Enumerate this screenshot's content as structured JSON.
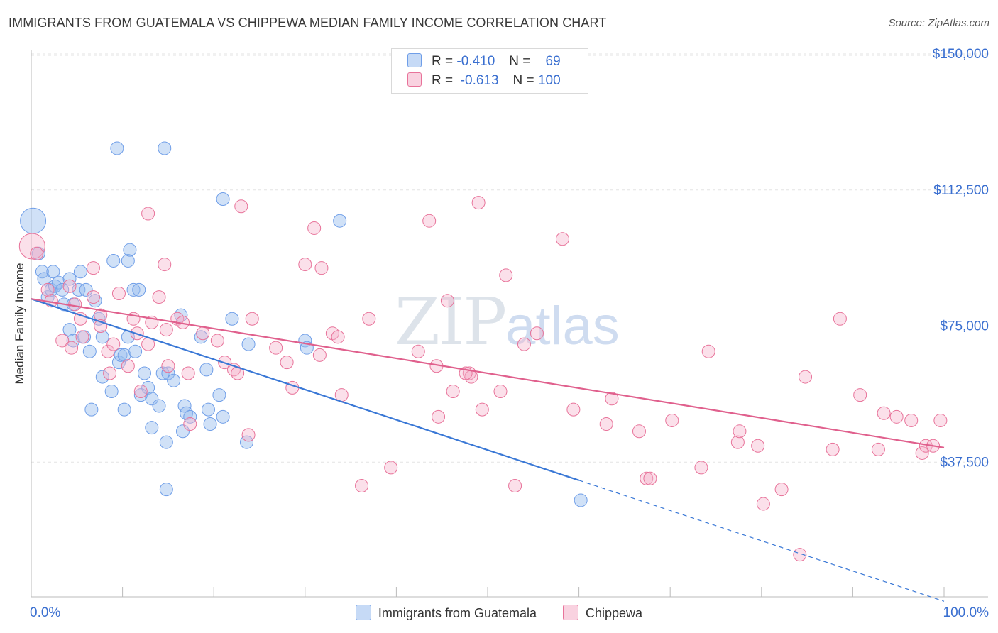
{
  "title": "IMMIGRANTS FROM GUATEMALA VS CHIPPEWA MEDIAN FAMILY INCOME CORRELATION CHART",
  "source": "Source: ZipAtlas.com",
  "watermark": {
    "zip": "ZIP",
    "atlas": "atlas"
  },
  "legend": {
    "r_label": "R =",
    "n_label": "N =",
    "series": [
      {
        "name": "Immigrants from Guatemala",
        "r": "-0.410",
        "n": "69",
        "color": "#6f9ee8",
        "fill": "#aecbf3"
      },
      {
        "name": "Chippewa",
        "r": "-0.613",
        "n": "100",
        "color": "#e8739a",
        "fill": "#f6bfd2"
      }
    ]
  },
  "chart_data": {
    "type": "scatter",
    "title": "IMMIGRANTS FROM GUATEMALA VS CHIPPEWA MEDIAN FAMILY INCOME CORRELATION CHART",
    "xlabel": "",
    "ylabel": "Median Family Income",
    "xlim": [
      0,
      100
    ],
    "ylim": [
      0,
      157000
    ],
    "x_tick_labels": [
      "0.0%",
      "100.0%"
    ],
    "y_ticks": [
      {
        "value": 37500,
        "label": "$37,500"
      },
      {
        "value": 75000,
        "label": "$75,000"
      },
      {
        "value": 112500,
        "label": "$112,500"
      },
      {
        "value": 150000,
        "label": "$150,000"
      }
    ],
    "grid": true,
    "series": [
      {
        "name": "Immigrants from Guatemala",
        "color": "#3a78d6",
        "trend": {
          "x0": 0,
          "y0": 82500,
          "x1": 60,
          "y1": 32500,
          "dash_to_x": 100
        },
        "points": [
          {
            "x": 0.2,
            "y": 104000,
            "big": true
          },
          {
            "x": 0.8,
            "y": 95000
          },
          {
            "x": 1.2,
            "y": 90000
          },
          {
            "x": 1.4,
            "y": 88000
          },
          {
            "x": 1.8,
            "y": 83000
          },
          {
            "x": 2.2,
            "y": 85000
          },
          {
            "x": 2.4,
            "y": 90000
          },
          {
            "x": 2.6,
            "y": 86000
          },
          {
            "x": 3.0,
            "y": 87000
          },
          {
            "x": 3.4,
            "y": 85000
          },
          {
            "x": 3.6,
            "y": 81000
          },
          {
            "x": 4.2,
            "y": 88000
          },
          {
            "x": 4.6,
            "y": 81000
          },
          {
            "x": 5.2,
            "y": 85000
          },
          {
            "x": 5.4,
            "y": 90000
          },
          {
            "x": 6.0,
            "y": 85000
          },
          {
            "x": 4.2,
            "y": 74000
          },
          {
            "x": 4.6,
            "y": 71000
          },
          {
            "x": 5.8,
            "y": 72000
          },
          {
            "x": 6.4,
            "y": 68000
          },
          {
            "x": 6.6,
            "y": 52000
          },
          {
            "x": 7.0,
            "y": 82000
          },
          {
            "x": 7.4,
            "y": 77000
          },
          {
            "x": 7.8,
            "y": 72000
          },
          {
            "x": 7.8,
            "y": 61000
          },
          {
            "x": 8.8,
            "y": 57000
          },
          {
            "x": 9.0,
            "y": 93000
          },
          {
            "x": 9.4,
            "y": 124000
          },
          {
            "x": 9.6,
            "y": 65000
          },
          {
            "x": 9.8,
            "y": 67000
          },
          {
            "x": 10.2,
            "y": 67000
          },
          {
            "x": 10.2,
            "y": 52000
          },
          {
            "x": 10.6,
            "y": 93000
          },
          {
            "x": 10.6,
            "y": 72000
          },
          {
            "x": 10.8,
            "y": 96000
          },
          {
            "x": 11.2,
            "y": 85000
          },
          {
            "x": 11.4,
            "y": 68000
          },
          {
            "x": 11.8,
            "y": 85000
          },
          {
            "x": 12.4,
            "y": 62000
          },
          {
            "x": 12.8,
            "y": 58000
          },
          {
            "x": 13.2,
            "y": 47000
          },
          {
            "x": 13.2,
            "y": 55000
          },
          {
            "x": 14.0,
            "y": 53000
          },
          {
            "x": 14.4,
            "y": 62000
          },
          {
            "x": 14.6,
            "y": 124000
          },
          {
            "x": 14.8,
            "y": 43000
          },
          {
            "x": 14.8,
            "y": 30000
          },
          {
            "x": 15.0,
            "y": 62000
          },
          {
            "x": 15.6,
            "y": 60000
          },
          {
            "x": 16.4,
            "y": 78000
          },
          {
            "x": 16.6,
            "y": 46000
          },
          {
            "x": 16.8,
            "y": 53000
          },
          {
            "x": 17.0,
            "y": 51000
          },
          {
            "x": 17.4,
            "y": 50000
          },
          {
            "x": 18.6,
            "y": 72000
          },
          {
            "x": 19.2,
            "y": 63000
          },
          {
            "x": 19.4,
            "y": 52000
          },
          {
            "x": 19.6,
            "y": 48000
          },
          {
            "x": 20.6,
            "y": 56000
          },
          {
            "x": 21.0,
            "y": 50000
          },
          {
            "x": 21.0,
            "y": 110000
          },
          {
            "x": 22.0,
            "y": 77000
          },
          {
            "x": 23.6,
            "y": 43000
          },
          {
            "x": 23.8,
            "y": 70000
          },
          {
            "x": 30.0,
            "y": 71000
          },
          {
            "x": 33.8,
            "y": 104000
          },
          {
            "x": 60.2,
            "y": 27000
          },
          {
            "x": 30.2,
            "y": 69000
          },
          {
            "x": 12.0,
            "y": 56000
          }
        ]
      },
      {
        "name": "Chippewa",
        "color": "#e0608d",
        "trend": {
          "x0": 0,
          "y0": 82500,
          "x1": 100,
          "y1": 41500
        },
        "points": [
          {
            "x": 0.1,
            "y": 97000,
            "big": true
          },
          {
            "x": 0.6,
            "y": 95000
          },
          {
            "x": 1.8,
            "y": 85000
          },
          {
            "x": 2.2,
            "y": 82000
          },
          {
            "x": 3.4,
            "y": 71000
          },
          {
            "x": 4.2,
            "y": 86000
          },
          {
            "x": 4.4,
            "y": 69000
          },
          {
            "x": 4.8,
            "y": 81000
          },
          {
            "x": 5.4,
            "y": 77000
          },
          {
            "x": 5.6,
            "y": 72000
          },
          {
            "x": 6.8,
            "y": 91000
          },
          {
            "x": 6.8,
            "y": 83000
          },
          {
            "x": 7.6,
            "y": 78000
          },
          {
            "x": 7.6,
            "y": 75000
          },
          {
            "x": 8.4,
            "y": 68000
          },
          {
            "x": 8.6,
            "y": 62000
          },
          {
            "x": 9.0,
            "y": 70000
          },
          {
            "x": 9.6,
            "y": 84000
          },
          {
            "x": 10.6,
            "y": 64000
          },
          {
            "x": 11.2,
            "y": 77000
          },
          {
            "x": 11.6,
            "y": 73000
          },
          {
            "x": 12.0,
            "y": 57000
          },
          {
            "x": 12.8,
            "y": 106000
          },
          {
            "x": 12.8,
            "y": 70000
          },
          {
            "x": 13.2,
            "y": 76000
          },
          {
            "x": 14.0,
            "y": 83000
          },
          {
            "x": 14.6,
            "y": 92000
          },
          {
            "x": 14.8,
            "y": 74000
          },
          {
            "x": 15.0,
            "y": 64000
          },
          {
            "x": 16.0,
            "y": 77000
          },
          {
            "x": 16.6,
            "y": 76000
          },
          {
            "x": 17.2,
            "y": 62000
          },
          {
            "x": 17.4,
            "y": 48000
          },
          {
            "x": 18.8,
            "y": 73000
          },
          {
            "x": 20.4,
            "y": 71000
          },
          {
            "x": 21.2,
            "y": 65000
          },
          {
            "x": 22.2,
            "y": 63000
          },
          {
            "x": 22.6,
            "y": 62000
          },
          {
            "x": 23.0,
            "y": 108000
          },
          {
            "x": 23.8,
            "y": 45000
          },
          {
            "x": 24.2,
            "y": 77000
          },
          {
            "x": 26.8,
            "y": 69000
          },
          {
            "x": 28.0,
            "y": 65000
          },
          {
            "x": 28.6,
            "y": 58000
          },
          {
            "x": 30.0,
            "y": 92000
          },
          {
            "x": 31.0,
            "y": 102000
          },
          {
            "x": 31.6,
            "y": 67000
          },
          {
            "x": 31.8,
            "y": 91000
          },
          {
            "x": 33.0,
            "y": 73000
          },
          {
            "x": 33.6,
            "y": 72000
          },
          {
            "x": 34.0,
            "y": 56000
          },
          {
            "x": 36.2,
            "y": 31000
          },
          {
            "x": 37.0,
            "y": 77000
          },
          {
            "x": 39.4,
            "y": 36000
          },
          {
            "x": 42.4,
            "y": 68000
          },
          {
            "x": 43.6,
            "y": 104000
          },
          {
            "x": 44.4,
            "y": 64000
          },
          {
            "x": 44.6,
            "y": 50000
          },
          {
            "x": 45.6,
            "y": 82000
          },
          {
            "x": 46.2,
            "y": 57000
          },
          {
            "x": 48.0,
            "y": 62000
          },
          {
            "x": 48.2,
            "y": 61000
          },
          {
            "x": 49.0,
            "y": 109000
          },
          {
            "x": 49.4,
            "y": 52000
          },
          {
            "x": 51.4,
            "y": 57000
          },
          {
            "x": 52.0,
            "y": 89000
          },
          {
            "x": 53.0,
            "y": 31000
          },
          {
            "x": 54.0,
            "y": 70000
          },
          {
            "x": 55.4,
            "y": 73000
          },
          {
            "x": 58.2,
            "y": 99000
          },
          {
            "x": 59.4,
            "y": 52000
          },
          {
            "x": 63.0,
            "y": 48000
          },
          {
            "x": 63.6,
            "y": 55000
          },
          {
            "x": 66.6,
            "y": 46000
          },
          {
            "x": 67.4,
            "y": 33000
          },
          {
            "x": 67.8,
            "y": 33000
          },
          {
            "x": 70.2,
            "y": 49000
          },
          {
            "x": 73.4,
            "y": 36000
          },
          {
            "x": 74.2,
            "y": 68000
          },
          {
            "x": 77.4,
            "y": 43000
          },
          {
            "x": 77.6,
            "y": 46000
          },
          {
            "x": 79.6,
            "y": 42000
          },
          {
            "x": 80.2,
            "y": 26000
          },
          {
            "x": 82.2,
            "y": 30000
          },
          {
            "x": 84.2,
            "y": 12000
          },
          {
            "x": 84.8,
            "y": 61000
          },
          {
            "x": 87.8,
            "y": 41000
          },
          {
            "x": 88.6,
            "y": 77000
          },
          {
            "x": 90.8,
            "y": 56000
          },
          {
            "x": 92.8,
            "y": 41000
          },
          {
            "x": 93.4,
            "y": 51000
          },
          {
            "x": 94.8,
            "y": 50000
          },
          {
            "x": 96.4,
            "y": 49000
          },
          {
            "x": 97.6,
            "y": 40000
          },
          {
            "x": 98.0,
            "y": 42000
          },
          {
            "x": 98.8,
            "y": 42000
          },
          {
            "x": 99.6,
            "y": 49000
          },
          {
            "x": 47.6,
            "y": 62000
          }
        ]
      }
    ]
  }
}
